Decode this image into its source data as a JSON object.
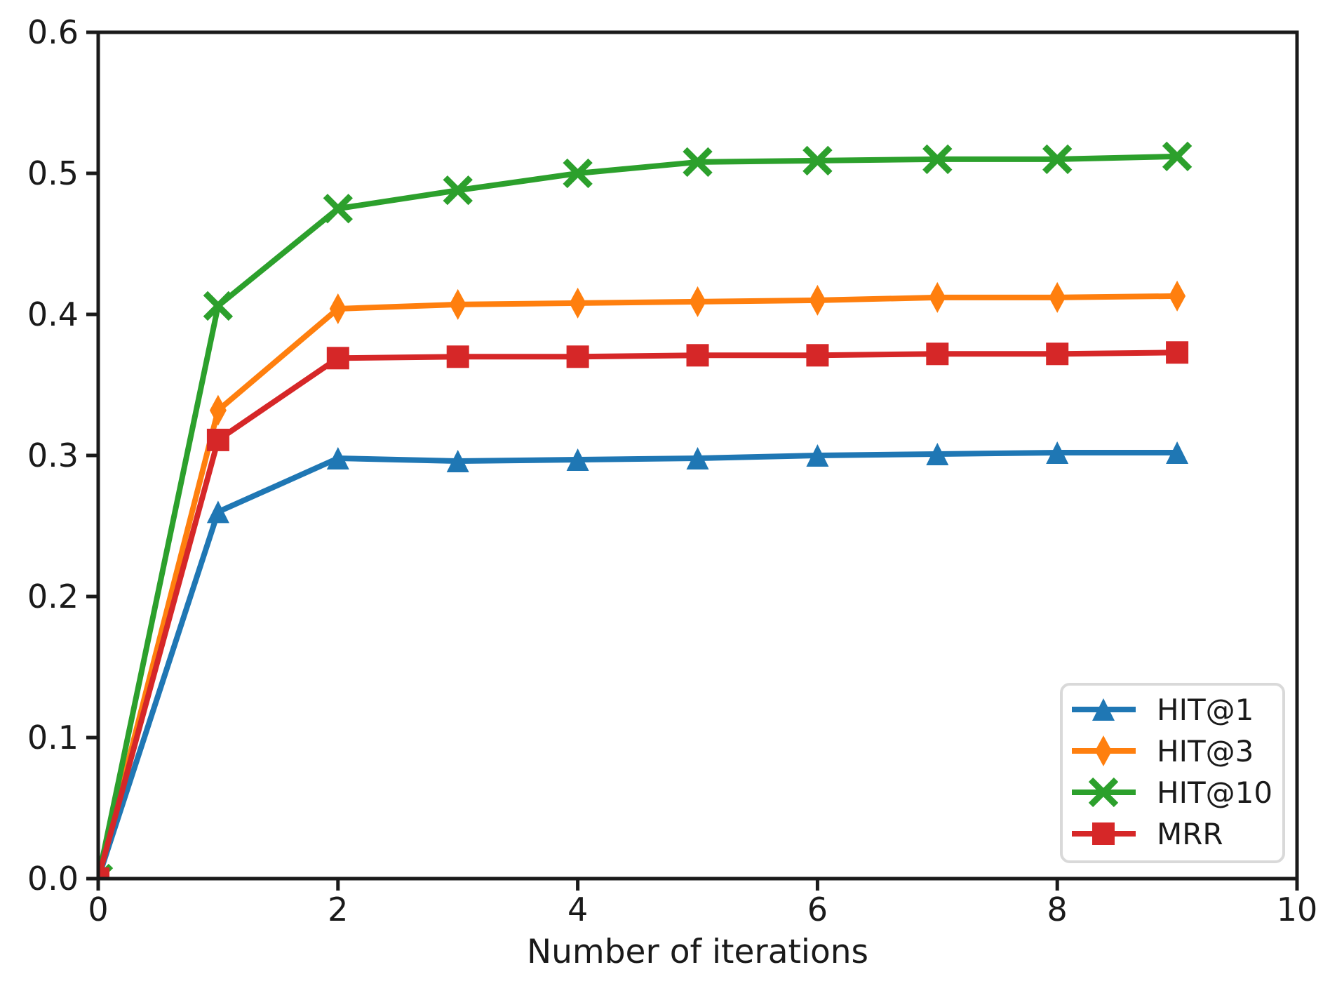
{
  "chart_data": {
    "type": "line",
    "title": "",
    "xlabel": "Number of iterations",
    "ylabel": "",
    "x": [
      0,
      1,
      2,
      3,
      4,
      5,
      6,
      7,
      8,
      9
    ],
    "xlim": [
      0,
      10
    ],
    "ylim": [
      0.0,
      0.6
    ],
    "xtick_values": [
      0,
      2,
      4,
      6,
      8,
      10
    ],
    "xtick_labels": [
      "0",
      "2",
      "4",
      "6",
      "8",
      "10"
    ],
    "ytick_values": [
      0.0,
      0.1,
      0.2,
      0.3,
      0.4,
      0.5,
      0.6
    ],
    "ytick_labels": [
      "0.0",
      "0.1",
      "0.2",
      "0.3",
      "0.4",
      "0.5",
      "0.6"
    ],
    "grid": false,
    "legend_position": "lower right",
    "series": [
      {
        "name": "HIT@1",
        "color": "#1f77b4",
        "marker": "triangle",
        "values": [
          0.0,
          0.26,
          0.298,
          0.296,
          0.297,
          0.298,
          0.3,
          0.301,
          0.302,
          0.302
        ]
      },
      {
        "name": "HIT@3",
        "color": "#ff7f0e",
        "marker": "thin-diamond",
        "values": [
          0.0,
          0.332,
          0.404,
          0.407,
          0.408,
          0.409,
          0.41,
          0.412,
          0.412,
          0.413
        ]
      },
      {
        "name": "HIT@10",
        "color": "#2ca02c",
        "marker": "x",
        "values": [
          0.0,
          0.406,
          0.475,
          0.488,
          0.5,
          0.508,
          0.509,
          0.51,
          0.51,
          0.512
        ]
      },
      {
        "name": "MRR",
        "color": "#d62728",
        "marker": "square",
        "values": [
          0.0,
          0.311,
          0.369,
          0.37,
          0.37,
          0.371,
          0.371,
          0.372,
          0.372,
          0.373
        ]
      }
    ],
    "colors": {
      "axis": "#1a1a1a",
      "text": "#1a1a1a",
      "background": "#ffffff",
      "legend_border": "#d9d9d9",
      "legend_background": "#ffffff"
    }
  }
}
